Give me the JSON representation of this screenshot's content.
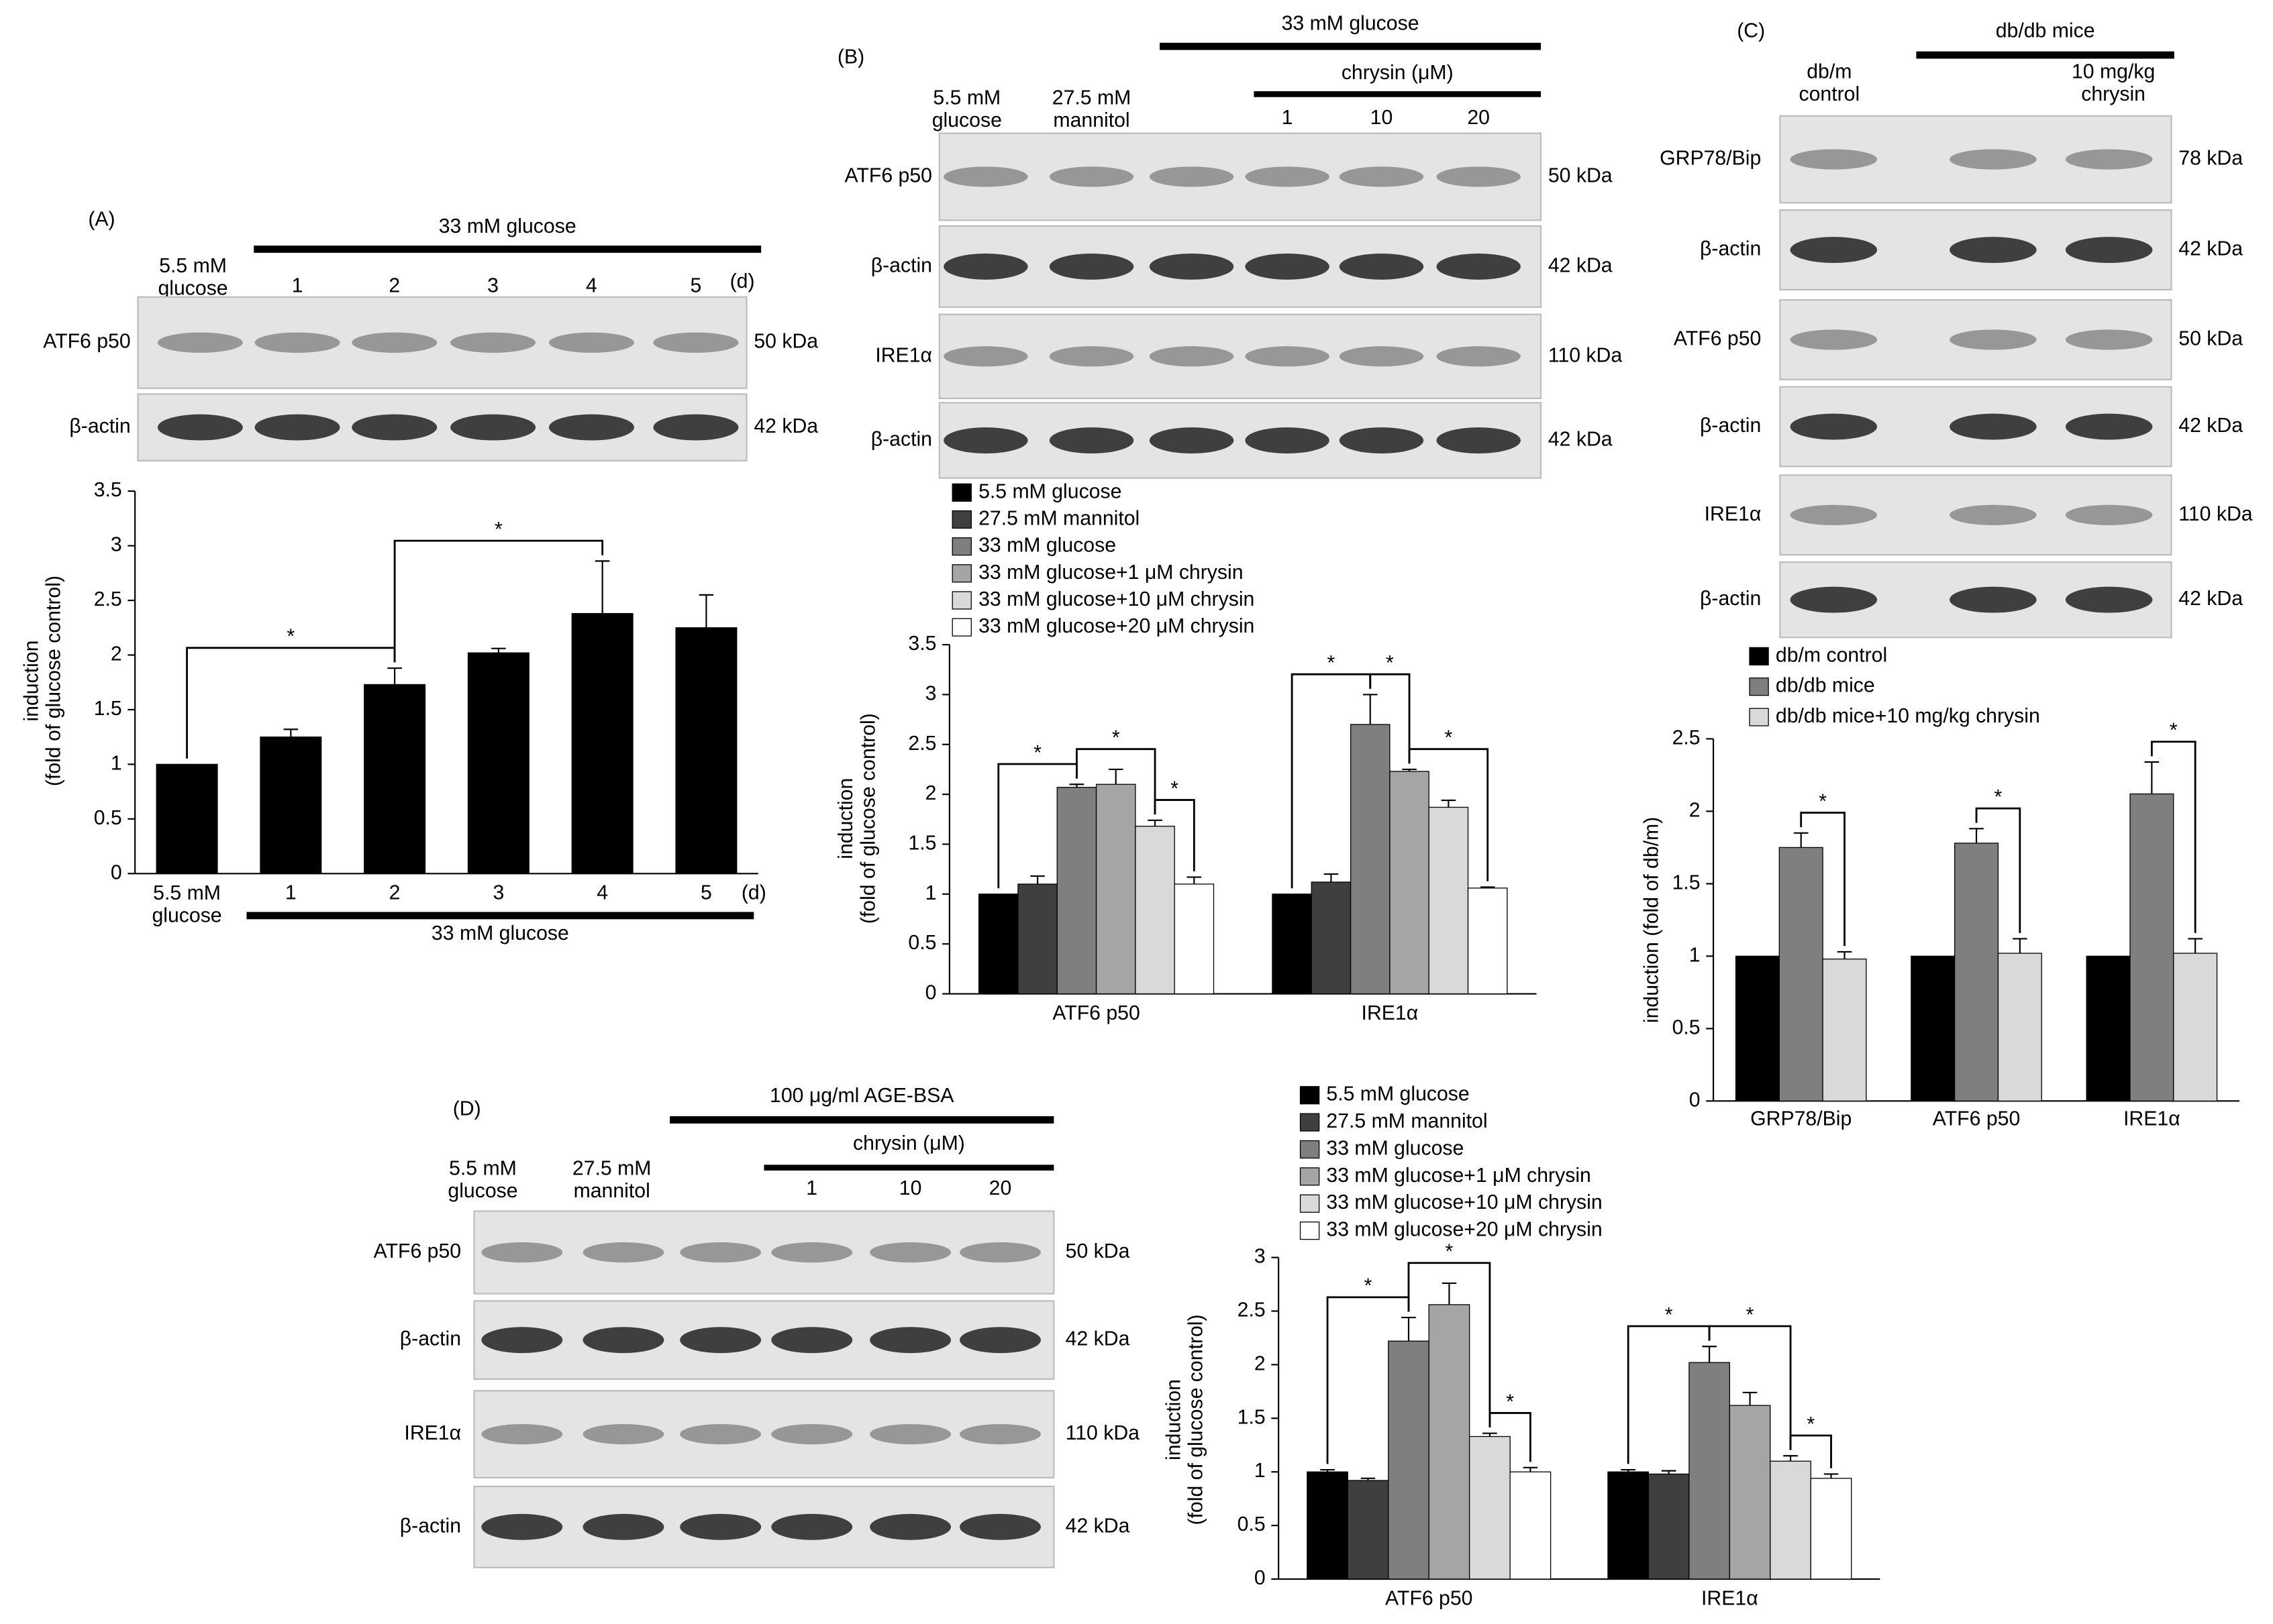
{
  "chart_data": [
    {
      "type": "bar",
      "categories": [
        "5.5 mM\nglucose",
        "1",
        "2",
        "3",
        "4",
        "5"
      ],
      "values": [
        1,
        1.25,
        1.73,
        2.02,
        2.38,
        2.25
      ],
      "errors": [
        0,
        0.07,
        0.15,
        0.04,
        0.48,
        0.3
      ],
      "color": "#000000",
      "ylim": [
        0,
        3.5
      ],
      "yticks": [
        0,
        0.5,
        1,
        1.5,
        2,
        2.5,
        3,
        3.5
      ],
      "ylabel": "induction\n(fold of glucose control)",
      "x_unit": "(d)",
      "group_label": "33 mM glucose",
      "significance": [
        {
          "from": 0,
          "to": 2,
          "label": "*"
        },
        {
          "from": 2,
          "to": 4,
          "label": "*"
        }
      ]
    },
    {
      "type": "bar",
      "categories": [
        "ATF6 p50",
        "IRE1α"
      ],
      "ylim": [
        0,
        3.5
      ],
      "yticks": [
        0,
        0.5,
        1,
        1.5,
        2,
        2.5,
        3,
        3.5
      ],
      "ylabel": "induction\n(fold of glucose control)",
      "series": [
        {
          "name": "5.5 mM glucose",
          "color": "#000000",
          "values": [
            1,
            1
          ],
          "errors": [
            0,
            0
          ]
        },
        {
          "name": "27.5 mM mannitol",
          "color": "#3f3f3f",
          "values": [
            1.1,
            1.12
          ],
          "errors": [
            0.08,
            0.08
          ]
        },
        {
          "name": "33 mM glucose",
          "color": "#7f7f7f",
          "values": [
            2.07,
            2.7
          ],
          "errors": [
            0.03,
            0.3
          ]
        },
        {
          "name": "33 mM glucose+1 μM chrysin",
          "color": "#a5a5a5",
          "values": [
            2.1,
            2.23
          ],
          "errors": [
            0.15,
            0.02
          ]
        },
        {
          "name": "33 mM glucose+10 μM chrysin",
          "color": "#d9d9d9",
          "values": [
            1.68,
            1.87
          ],
          "errors": [
            0.06,
            0.07
          ]
        },
        {
          "name": "33 mM glucose+20 μM chrysin",
          "color": "#ffffff",
          "values": [
            1.1,
            1.06
          ],
          "errors": [
            0.07,
            0.01
          ]
        }
      ],
      "significance": [
        {
          "category": 0,
          "from": 0,
          "to": 2,
          "label": "*"
        },
        {
          "category": 0,
          "from": 2,
          "to": 4,
          "label": "*"
        },
        {
          "category": 0,
          "from": 4,
          "to": 5,
          "label": "*"
        },
        {
          "category": 1,
          "from": 0,
          "to": 2,
          "label": "*"
        },
        {
          "category": 1,
          "from": 2,
          "to": 3,
          "label": "*"
        },
        {
          "category": 1,
          "from": 3,
          "to": 5,
          "label": "*"
        }
      ]
    },
    {
      "type": "bar",
      "categories": [
        "GRP78/Bip",
        "ATF6  p50",
        "IRE1α"
      ],
      "ylim": [
        0,
        2.5
      ],
      "yticks": [
        0,
        0.5,
        1,
        1.5,
        2,
        2.5
      ],
      "ylabel": "induction (fold of db/m)",
      "series": [
        {
          "name": "db/m control",
          "color": "#000000",
          "values": [
            1,
            1,
            1
          ],
          "errors": [
            0,
            0,
            0
          ]
        },
        {
          "name": "db/db mice",
          "color": "#7f7f7f",
          "values": [
            1.75,
            1.78,
            2.12
          ],
          "errors": [
            0.1,
            0.1,
            0.22
          ]
        },
        {
          "name": "db/db mice+10 mg/kg chrysin",
          "color": "#d9d9d9",
          "values": [
            0.98,
            1.02,
            1.02
          ],
          "errors": [
            0.05,
            0.1,
            0.1
          ]
        }
      ],
      "significance": [
        {
          "category": 0,
          "from": 1,
          "to": 2,
          "label": "*"
        },
        {
          "category": 1,
          "from": 1,
          "to": 2,
          "label": "*"
        },
        {
          "category": 2,
          "from": 1,
          "to": 2,
          "label": "*"
        }
      ]
    },
    {
      "type": "bar",
      "categories": [
        "ATF6 p50",
        "IRE1α"
      ],
      "ylim": [
        0,
        3
      ],
      "yticks": [
        0,
        0.5,
        1,
        1.5,
        2,
        2.5,
        3
      ],
      "ylabel": "induction\n(fold of glucose control)",
      "series": [
        {
          "name": "5.5 mM glucose",
          "color": "#000000",
          "values": [
            1,
            1
          ],
          "errors": [
            0.02,
            0.02
          ]
        },
        {
          "name": "27.5 mM mannitol",
          "color": "#3f3f3f",
          "values": [
            0.92,
            0.98
          ],
          "errors": [
            0.02,
            0.03
          ]
        },
        {
          "name": "33 mM glucose",
          "color": "#7f7f7f",
          "values": [
            2.22,
            2.02
          ],
          "errors": [
            0.22,
            0.15
          ]
        },
        {
          "name": "33 mM glucose+1 μM chrysin",
          "color": "#a5a5a5",
          "values": [
            2.56,
            1.62
          ],
          "errors": [
            0.2,
            0.12
          ]
        },
        {
          "name": "33 mM glucose+10 μM chrysin",
          "color": "#d9d9d9",
          "values": [
            1.33,
            1.1
          ],
          "errors": [
            0.03,
            0.05
          ]
        },
        {
          "name": "33 mM glucose+20 μM chrysin",
          "color": "#ffffff",
          "values": [
            1,
            0.94
          ],
          "errors": [
            0.04,
            0.04
          ]
        }
      ],
      "significance": [
        {
          "category": 0,
          "from": 0,
          "to": 2,
          "label": "*"
        },
        {
          "category": 0,
          "from": 2,
          "to": 4,
          "label": "*"
        },
        {
          "category": 0,
          "from": 4,
          "to": 5,
          "label": "*"
        },
        {
          "category": 1,
          "from": 0,
          "to": 2,
          "label": "*"
        },
        {
          "category": 1,
          "from": 2,
          "to": 4,
          "label": "*"
        },
        {
          "category": 1,
          "from": 4,
          "to": 5,
          "label": "*"
        }
      ]
    }
  ],
  "blots": [
    {
      "panel": "(A)",
      "group": "33 mM glucose",
      "lanes": [
        "5.5 mM\nglucose",
        "1",
        "2",
        "3",
        "4",
        "5"
      ],
      "lane_unit": "(d)",
      "rows": [
        {
          "label": "ATF6  p50",
          "size": "50 kDa"
        },
        {
          "label": "β-actin",
          "size": "42 kDa"
        }
      ]
    },
    {
      "panel": "(B)",
      "group": "33 mM glucose",
      "subgroup": "chrysin (μM)",
      "lanes": [
        "5.5 mM\nglucose",
        "27.5 mM\nmannitol",
        null,
        "1",
        "10",
        "20"
      ],
      "rows": [
        {
          "label": "ATF6  p50",
          "size": "50 kDa"
        },
        {
          "label": "β-actin",
          "size": "42 kDa"
        },
        {
          "label": "IRE1α",
          "size": "110 kDa"
        },
        {
          "label": "β-actin",
          "size": "42 kDa"
        }
      ]
    },
    {
      "panel": "(C)",
      "group": "db/db mice",
      "lanes": [
        "db/m\ncontrol",
        null,
        "10 mg/kg\nchrysin"
      ],
      "rows": [
        {
          "label": "GRP78/Bip",
          "size": "78 kDa"
        },
        {
          "label": "β-actin",
          "size": "42 kDa"
        },
        {
          "label": "ATF6  p50",
          "size": "50 kDa"
        },
        {
          "label": "β-actin",
          "size": "42 kDa"
        },
        {
          "label": "IRE1α",
          "size": "110 kDa"
        },
        {
          "label": "β-actin",
          "size": "42 kDa"
        }
      ]
    },
    {
      "panel": "(D)",
      "group": "100 μg/ml AGE-BSA",
      "subgroup": "chrysin (μM)",
      "lanes": [
        "5.5 mM\nglucose",
        "27.5 mM\nmannitol",
        null,
        "1",
        "10",
        "20"
      ],
      "rows": [
        {
          "label": "ATF6  p50",
          "size": "50 kDa"
        },
        {
          "label": "β-actin",
          "size": "42 kDa"
        },
        {
          "label": "IRE1α",
          "size": "110 kDa"
        },
        {
          "label": "β-actin",
          "size": "42 kDa"
        }
      ]
    }
  ]
}
